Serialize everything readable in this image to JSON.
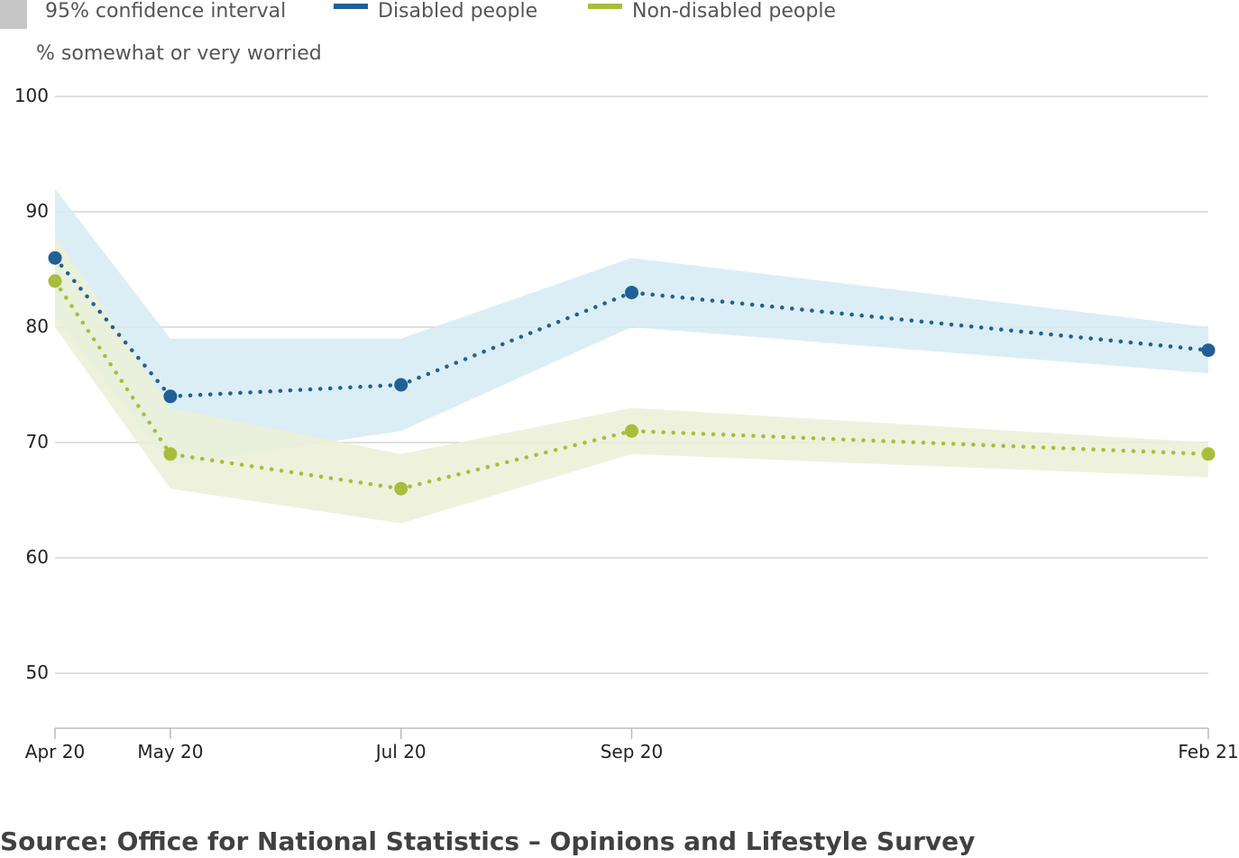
{
  "legend": {
    "ci_label": "95% confidence interval",
    "series1_label": "Disabled people",
    "series2_label": "Non-disabled people"
  },
  "colors": {
    "ci_swatch": "#c6c6c6",
    "series1": "#206095",
    "series2": "#a8bd3a",
    "series1_band": "#d5ebf5",
    "series2_band": "#ebf0d7",
    "grid": "#cccccc",
    "axis": "#bbbbbb"
  },
  "source": "Source: Office for National Statistics – Opinions and Lifestyle Survey",
  "chart_data": {
    "type": "line",
    "ylabel": "% somewhat or very worried",
    "ylim": [
      45,
      100
    ],
    "yticks": [
      100,
      90,
      80,
      70,
      60,
      50
    ],
    "x_dates": [
      "2020-04",
      "2020-05",
      "2020-07",
      "2020-09",
      "2021-02"
    ],
    "categories": [
      "Apr 20",
      "May 20",
      "Jul 20",
      "Sep 20",
      "Feb 21"
    ],
    "grid": true,
    "series": [
      {
        "name": "Disabled people",
        "values": [
          86,
          74,
          75,
          83,
          78
        ],
        "ci_lower": [
          81,
          68,
          71,
          80,
          76
        ],
        "ci_upper": [
          92,
          79,
          79,
          86,
          80
        ]
      },
      {
        "name": "Non-disabled people",
        "values": [
          84,
          69,
          66,
          71,
          69
        ],
        "ci_lower": [
          80,
          66,
          63,
          69,
          67
        ],
        "ci_upper": [
          88,
          73,
          69,
          73,
          70
        ]
      }
    ]
  }
}
